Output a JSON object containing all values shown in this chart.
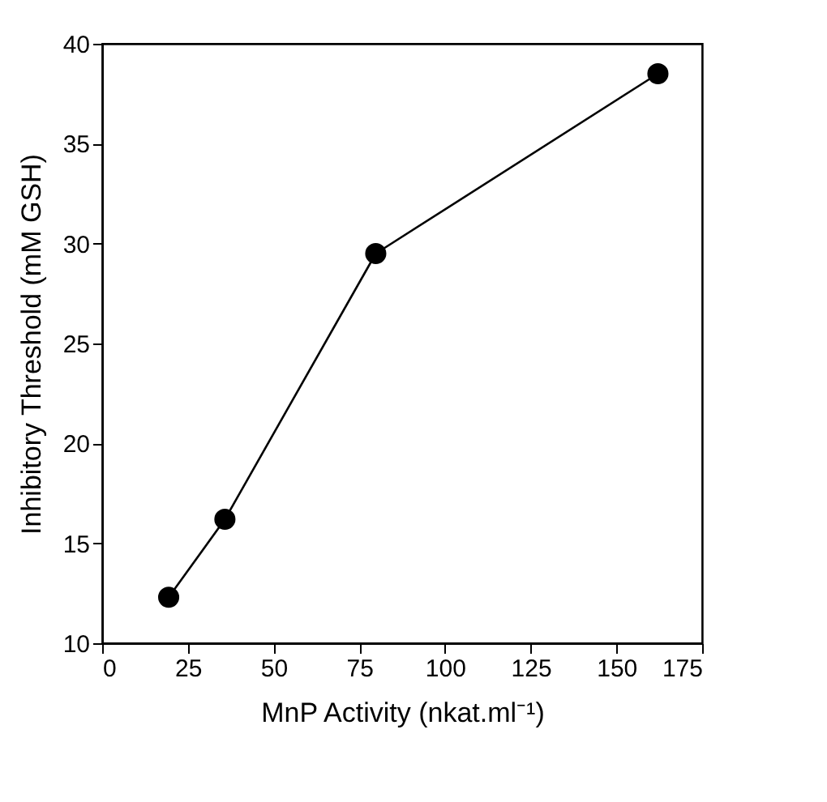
{
  "chart_data": {
    "type": "line",
    "xlabel": "MnP Activity (nkat.ml⁻¹)",
    "ylabel": "Inhibitory Threshold (mM GSH)",
    "x": [
      19.4,
      35.8,
      79.8,
      162.1
    ],
    "series": [
      {
        "color": "#000000",
        "values": [
          12.3,
          16.2,
          29.5,
          38.5
        ]
      }
    ],
    "xlim": [
      0,
      175
    ],
    "xticks": [
      0,
      25,
      50,
      75,
      100,
      125,
      150,
      175
    ],
    "ylim": [
      10,
      40
    ],
    "yticks": [
      10,
      15,
      20,
      25,
      30,
      35,
      40
    ],
    "marker": "circle",
    "line_style": "solid",
    "grid": false
  }
}
